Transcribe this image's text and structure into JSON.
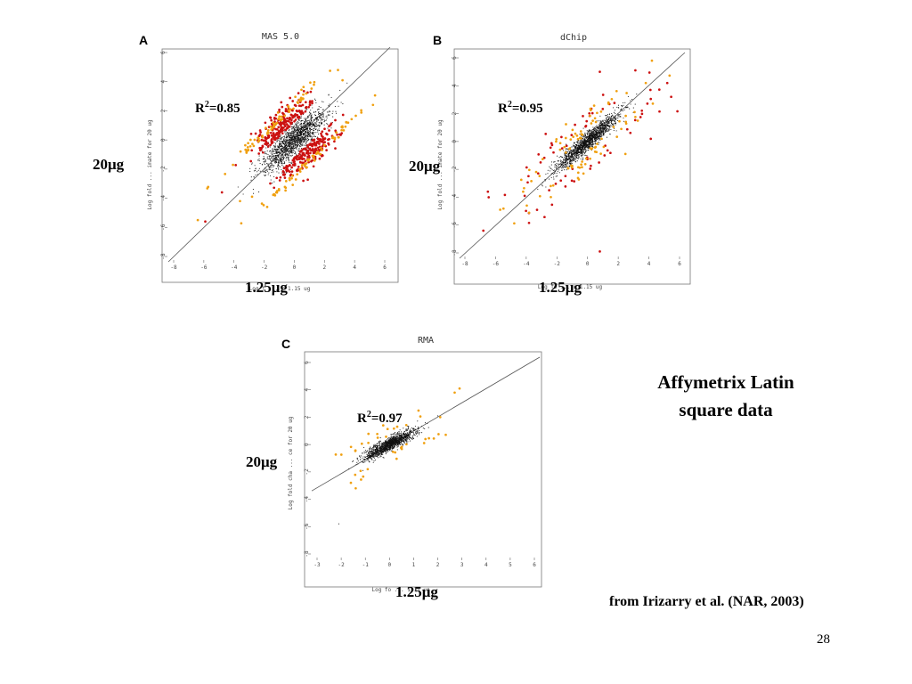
{
  "slide": {
    "title_lines": [
      "Affymetrix Latin",
      "square data"
    ],
    "citation": "from Irizarry et al. (NAR, 2003)",
    "page_number": "28"
  },
  "colors": {
    "black_points": "#111111",
    "red_points": "#cc1111",
    "orange_points": "#f0a010",
    "frame": "#777777"
  },
  "chart_data": [
    {
      "type": "scatter",
      "panel_label": "A",
      "title": "MAS 5.0",
      "r2_label": "R",
      "r2_sup": "2",
      "r2_value": "=0.85",
      "ylabel": "Log fold ... imate for 20 ug",
      "xlabel": "Log f ... r 1.15 ug",
      "overlay_y": "20μg",
      "overlay_x": "1.25μg",
      "xlim": [
        -8,
        6
      ],
      "ylim": [
        -8,
        6
      ],
      "xticks": [
        -8,
        -6,
        -4,
        -2,
        0,
        2,
        4,
        6
      ],
      "yticks": [
        -8,
        -6,
        -4,
        -2,
        0,
        2,
        4,
        6
      ],
      "identity_line": true,
      "series": [
        {
          "color_key": "black_points",
          "count": 1600,
          "sd_along": 1.0,
          "sd_across": 0.6,
          "points": [
            [
              -1.9,
              -1.5
            ],
            [
              -1.2,
              -0.8
            ],
            [
              -0.5,
              0.3
            ],
            [
              0.0,
              0.1
            ],
            [
              0.6,
              0.4
            ],
            [
              1.3,
              1.1
            ],
            [
              2.1,
              1.6
            ],
            [
              3.5,
              3.9
            ]
          ]
        },
        {
          "color_key": "red_points",
          "count": 420,
          "sd_along": 0.9,
          "sd_across": 0.8,
          "min_offset": 1.2,
          "points": [
            [
              -1.1,
              1.2
            ],
            [
              0.4,
              2.6
            ],
            [
              1.4,
              -1.3
            ],
            [
              -0.4,
              -2.1
            ],
            [
              -5.9,
              -5.6
            ],
            [
              -4.8,
              -3.6
            ]
          ]
        },
        {
          "color_key": "orange_points",
          "count": 150,
          "sd_along": 1.8,
          "sd_across": 0.3,
          "min_offset": 2.2,
          "points": [
            [
              2.9,
              4.8
            ],
            [
              3.2,
              4.1
            ],
            [
              -2.8,
              -3.9
            ],
            [
              -3.6,
              -4.2
            ],
            [
              -6.4,
              -5.5
            ],
            [
              -1.8,
              -4.6
            ]
          ]
        }
      ]
    },
    {
      "type": "scatter",
      "panel_label": "B",
      "title": "dChip",
      "r2_label": "R",
      "r2_sup": "2",
      "r2_value": "=0.95",
      "ylabel": "Log fold ... imate for 20 ug",
      "xlabel": "Log fo ... r 1.15 ug",
      "overlay_y": "20μg",
      "overlay_x": "1.25μg",
      "xlim": [
        -8,
        6
      ],
      "ylim": [
        -8,
        6
      ],
      "xticks": [
        -8,
        -6,
        -4,
        -2,
        0,
        2,
        4,
        6
      ],
      "yticks": [
        -8,
        -6,
        -4,
        -2,
        0,
        2,
        4,
        6
      ],
      "identity_line": true,
      "series": [
        {
          "color_key": "black_points",
          "count": 1600,
          "sd_along": 1.0,
          "sd_across": 0.35,
          "points": [
            [
              -1.0,
              -0.9
            ],
            [
              0.0,
              0.1
            ],
            [
              0.9,
              0.8
            ],
            [
              2.0,
              1.8
            ],
            [
              3.2,
              3.4
            ],
            [
              -2.6,
              -2.3
            ]
          ]
        },
        {
          "color_key": "red_points",
          "count": 70,
          "sd_along": 2.2,
          "sd_across": 1.0,
          "min_offset": 0.9,
          "points": [
            [
              0.8,
              5.0
            ],
            [
              4.1,
              3.7
            ],
            [
              -4.1,
              -3.9
            ],
            [
              -6.8,
              -6.4
            ],
            [
              -6.5,
              -3.6
            ],
            [
              5.2,
              4.2
            ],
            [
              0.8,
              -7.9
            ]
          ]
        },
        {
          "color_key": "orange_points",
          "count": 90,
          "sd_along": 2.3,
          "sd_across": 0.9,
          "min_offset": 0.6,
          "points": [
            [
              4.2,
              5.8
            ],
            [
              3.8,
              4.2
            ],
            [
              -5.7,
              -4.9
            ],
            [
              -2.4,
              -3.2
            ],
            [
              -4.2,
              -3.6
            ],
            [
              2.2,
              0.9
            ]
          ]
        }
      ]
    },
    {
      "type": "scatter",
      "panel_label": "C",
      "title": "RMA",
      "r2_label": "R",
      "r2_sup": "2",
      "r2_value": "=0.97",
      "ylabel": "Log fold cha ... ce for 20 ug",
      "xlabel": "Log fo ... 1.15 ug",
      "overlay_y": "20μg",
      "overlay_x": "1.25μg",
      "xlim": [
        -3,
        6
      ],
      "ylim": [
        -8,
        6
      ],
      "xticks": [
        -3,
        -2,
        -1,
        0,
        1,
        2,
        3,
        4,
        5,
        6
      ],
      "yticks": [
        -8,
        -6,
        -4,
        -2,
        0,
        2,
        4,
        6
      ],
      "identity_line": true,
      "series": [
        {
          "color_key": "black_points",
          "count": 1400,
          "sd_along": 0.5,
          "sd_across": 0.25,
          "points": [
            [
              0.0,
              -0.3
            ],
            [
              0.5,
              0.2
            ],
            [
              1.0,
              0.8
            ],
            [
              1.4,
              1.2
            ],
            [
              2.0,
              2.1
            ],
            [
              -1.1,
              -1.9
            ],
            [
              -2.1,
              -5.8
            ]
          ]
        },
        {
          "color_key": "orange_points",
          "count": 35,
          "sd_along": 1.0,
          "sd_across": 0.6,
          "min_offset": 0.6,
          "points": [
            [
              2.9,
              4.1
            ],
            [
              2.7,
              3.8
            ],
            [
              -0.9,
              -1.8
            ],
            [
              -1.6,
              -2.8
            ],
            [
              -1.4,
              -3.2
            ],
            [
              2.1,
              2.0
            ]
          ]
        }
      ]
    }
  ]
}
